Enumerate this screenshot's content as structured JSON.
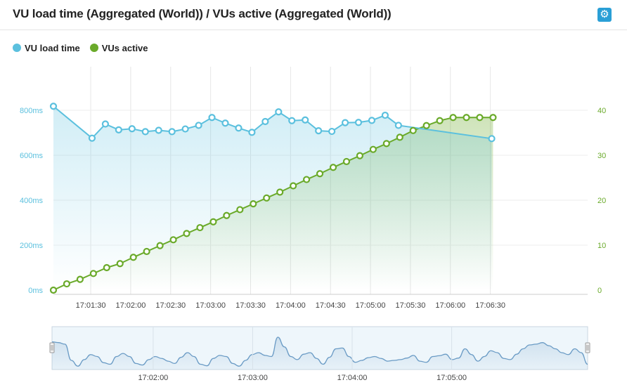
{
  "header": {
    "title": "VU load time (Aggregated (World)) / VUs active (Aggregated (World))",
    "settings_icon": "gear-icon"
  },
  "legend": [
    {
      "label": "VU load time",
      "color": "#5bc0de"
    },
    {
      "label": "VUs active",
      "color": "#6aaa2a"
    }
  ],
  "chart_data": [
    {
      "type": "line",
      "title": "VU load time (Aggregated (World)) / VUs active (Aggregated (World))",
      "x_unit": "seconds after 17:01:00",
      "x_range": [
        2,
        403
      ],
      "x_ticks": [
        {
          "t": 30,
          "label": "17:01:30"
        },
        {
          "t": 60,
          "label": "17:02:00"
        },
        {
          "t": 90,
          "label": "17:02:30"
        },
        {
          "t": 120,
          "label": "17:03:00"
        },
        {
          "t": 150,
          "label": "17:03:30"
        },
        {
          "t": 180,
          "label": "17:04:00"
        },
        {
          "t": 210,
          "label": "17:04:30"
        },
        {
          "t": 240,
          "label": "17:05:00"
        },
        {
          "t": 270,
          "label": "17:05:30"
        },
        {
          "t": 300,
          "label": "17:06:00"
        },
        {
          "t": 330,
          "label": "17:06:30"
        }
      ],
      "y_left": {
        "min": 0,
        "max": 1000,
        "ticks": [
          0,
          200,
          400,
          600,
          800
        ],
        "labels": [
          "0ms",
          "200ms",
          "400ms",
          "600ms",
          "800ms"
        ]
      },
      "y_right": {
        "min": 0,
        "max": 50,
        "ticks": [
          0,
          10,
          20,
          30,
          40
        ],
        "labels": [
          "0",
          "10",
          "20",
          "30",
          "40"
        ]
      },
      "series": [
        {
          "name": "VU load time",
          "axis": "left",
          "color": "#5bc0de",
          "unit": "ms",
          "points": [
            [
              2,
              818
            ],
            [
              31,
              676
            ],
            [
              41,
              739
            ],
            [
              51,
              713
            ],
            [
              61,
              718
            ],
            [
              71,
              705
            ],
            [
              81,
              711
            ],
            [
              91,
              705
            ],
            [
              101,
              717
            ],
            [
              111,
              733
            ],
            [
              121,
              768
            ],
            [
              131,
              743
            ],
            [
              141,
              721
            ],
            [
              151,
              702
            ],
            [
              161,
              750
            ],
            [
              171,
              793
            ],
            [
              181,
              754
            ],
            [
              191,
              757
            ],
            [
              201,
              709
            ],
            [
              211,
              706
            ],
            [
              221,
              745
            ],
            [
              231,
              746
            ],
            [
              241,
              755
            ],
            [
              251,
              778
            ],
            [
              261,
              733
            ],
            [
              331,
              674
            ]
          ]
        },
        {
          "name": "VUs active",
          "axis": "right",
          "color": "#6aaa2a",
          "unit": "VUs",
          "points": [
            [
              2,
              0
            ],
            [
              12,
              1.4
            ],
            [
              22,
              2.4
            ],
            [
              32,
              3.7
            ],
            [
              42,
              5.0
            ],
            [
              52,
              5.9
            ],
            [
              62,
              7.3
            ],
            [
              72,
              8.6
            ],
            [
              82,
              9.9
            ],
            [
              92,
              11.2
            ],
            [
              102,
              12.6
            ],
            [
              112,
              13.9
            ],
            [
              122,
              15.2
            ],
            [
              132,
              16.6
            ],
            [
              142,
              17.9
            ],
            [
              152,
              19.2
            ],
            [
              162,
              20.5
            ],
            [
              172,
              21.8
            ],
            [
              182,
              23.2
            ],
            [
              192,
              24.6
            ],
            [
              202,
              25.9
            ],
            [
              212,
              27.3
            ],
            [
              222,
              28.6
            ],
            [
              232,
              29.9
            ],
            [
              242,
              31.3
            ],
            [
              252,
              32.6
            ],
            [
              262,
              34.0
            ],
            [
              272,
              35.5
            ],
            [
              282,
              36.6
            ],
            [
              292,
              37.7
            ],
            [
              302,
              38.4
            ],
            [
              312,
              38.4
            ],
            [
              322,
              38.4
            ],
            [
              332,
              38.4
            ]
          ]
        }
      ]
    },
    {
      "type": "area",
      "title": "range navigator",
      "x_ticks": [
        {
          "t": 60,
          "label": "17:02:00"
        },
        {
          "t": 120,
          "label": "17:03:00"
        },
        {
          "t": 180,
          "label": "17:04:00"
        },
        {
          "t": 240,
          "label": "17:05:00"
        }
      ],
      "series": [
        {
          "name": "VU load time",
          "color": "#6a9bc5",
          "values": [
            0.68,
            0.66,
            0.62,
            0.2,
            0.05,
            0.22,
            0.35,
            0.3,
            0.14,
            0.1,
            0.3,
            0.38,
            0.3,
            0.12,
            0.08,
            0.22,
            0.3,
            0.25,
            0.18,
            0.12,
            0.28,
            0.4,
            0.3,
            0.1,
            0.06,
            0.25,
            0.33,
            0.3,
            0.12,
            0.05,
            0.2,
            0.35,
            0.4,
            0.33,
            0.3,
            0.8,
            0.55,
            0.3,
            0.22,
            0.36,
            0.4,
            0.25,
            0.1,
            0.28,
            0.5,
            0.52,
            0.3,
            0.15,
            0.2,
            0.27,
            0.3,
            0.25,
            0.18,
            0.2,
            0.22,
            0.26,
            0.33,
            0.18,
            0.15,
            0.3,
            0.32,
            0.36,
            0.22,
            0.26,
            0.5,
            0.35,
            0.18,
            0.3,
            0.45,
            0.4,
            0.25,
            0.22,
            0.36,
            0.5,
            0.6,
            0.62,
            0.66,
            0.58,
            0.5,
            0.4,
            0.35,
            0.5,
            0.4,
            0.1
          ]
        }
      ]
    }
  ]
}
